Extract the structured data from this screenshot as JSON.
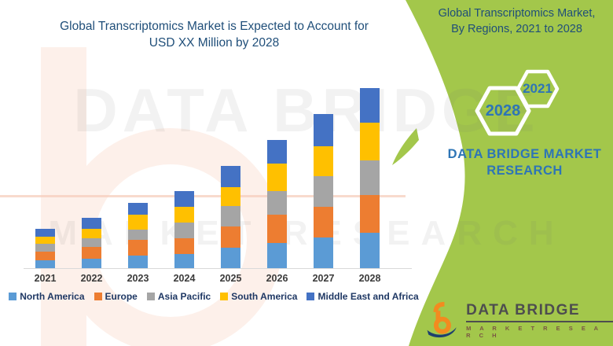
{
  "chart": {
    "title_line1": "Global Transcriptomics Market is Expected to Account for",
    "title_line2": "USD XX Million by 2028"
  },
  "panel": {
    "title_line1": "Global Transcriptomics Market,",
    "title_line2": "By Regions, 2021 to 2028",
    "hexagons": [
      {
        "label": "2021"
      },
      {
        "label": "2028"
      }
    ],
    "brand_line1": "DATA BRIDGE MARKET",
    "brand_line2": "RESEARCH",
    "accent_green": "#A3C74B",
    "title_navy": "#1F4E79",
    "text_blue": "#2E75B6"
  },
  "logo": {
    "name": "DATA BRIDGE",
    "sub": "M A R K E T   R E S E A R C H",
    "glyph": "data-bridge-b-logo",
    "orange": "#F28B1F",
    "navy": "#1E3F6E"
  },
  "watermark": {
    "line1": "DATA BRIDGE",
    "line2": "MARKET RESEARCH"
  },
  "chart_data": {
    "type": "bar",
    "stacked": true,
    "title": "Global Transcriptomics Market is Expected to Account for USD XX Million by 2028",
    "xlabel": "",
    "ylabel": "",
    "y_axis_visible": false,
    "values_note": "relative units estimated from bar pixel heights; no y-axis scale shown in source",
    "ylim": [
      0,
      240
    ],
    "grid": false,
    "legend_position": "bottom",
    "categories": [
      "2021",
      "2022",
      "2023",
      "2024",
      "2025",
      "2026",
      "2027",
      "2028"
    ],
    "series": [
      {
        "name": "North America",
        "color": "#5B9BD5",
        "values": [
          10,
          12,
          16,
          18,
          26,
          32,
          39,
          45
        ]
      },
      {
        "name": "Europe",
        "color": "#ED7D31",
        "values": [
          11,
          15,
          20,
          20,
          27,
          36,
          39,
          48
        ]
      },
      {
        "name": "Asia Pacific",
        "color": "#A5A5A5",
        "values": [
          10,
          11,
          13,
          20,
          26,
          30,
          39,
          44
        ]
      },
      {
        "name": "South America",
        "color": "#FFC000",
        "values": [
          9,
          12,
          19,
          20,
          24,
          35,
          38,
          48
        ]
      },
      {
        "name": "Middle East and Africa",
        "color": "#4472C4",
        "values": [
          10,
          14,
          15,
          20,
          27,
          30,
          41,
          44
        ]
      }
    ],
    "totals": [
      50,
      64,
      83,
      98,
      130,
      163,
      196,
      229
    ]
  }
}
